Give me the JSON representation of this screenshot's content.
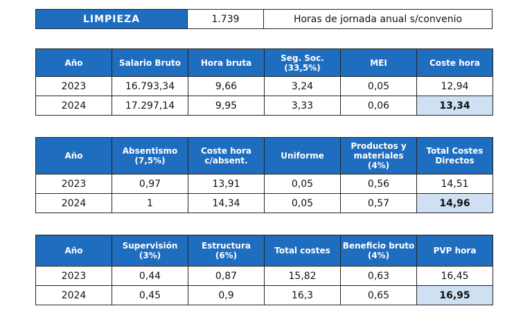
{
  "header": {
    "category": "LIMPIEZA",
    "hours": "1.739",
    "description": "Horas de jornada anual s/convenio"
  },
  "accent_color": "#1f6dbf",
  "highlight_color": "#cfe0f3",
  "tables": [
    {
      "columns": [
        "Año",
        "Salario Bruto",
        "Hora bruta",
        "Seg. Soc.\n(33,5%)",
        "MEI",
        "Coste hora"
      ],
      "rows": [
        [
          "2023",
          "16.793,34",
          "9,66",
          "3,24",
          "0,05",
          "12,94"
        ],
        [
          "2024",
          "17.297,14",
          "9,95",
          "3,33",
          "0,06",
          "13,34"
        ]
      ]
    },
    {
      "columns": [
        "Año",
        "Absentismo\n(7,5%)",
        "Coste hora\nc/absent.",
        "Uniforme",
        "Productos y\nmateriales\n(4%)",
        "Total Costes\nDirectos"
      ],
      "rows": [
        [
          "2023",
          "0,97",
          "13,91",
          "0,05",
          "0,56",
          "14,51"
        ],
        [
          "2024",
          "1",
          "14,34",
          "0,05",
          "0,57",
          "14,96"
        ]
      ]
    },
    {
      "columns": [
        "Año",
        "Supervisión\n(3%)",
        "Estructura\n(6%)",
        "Total costes",
        "Beneficio bruto\n(4%)",
        "PVP hora"
      ],
      "rows": [
        [
          "2023",
          "0,44",
          "0,87",
          "15,82",
          "0,63",
          "16,45"
        ],
        [
          "2024",
          "0,45",
          "0,9",
          "16,3",
          "0,65",
          "16,95"
        ]
      ]
    }
  ]
}
